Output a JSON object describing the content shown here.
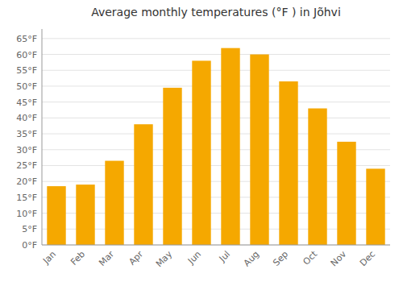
{
  "chart_data": {
    "type": "bar",
    "title": "Average monthly temperatures (°F ) in Jõhvi",
    "categories": [
      "Jan",
      "Feb",
      "Mar",
      "Apr",
      "May",
      "Jun",
      "Jul",
      "Aug",
      "Sep",
      "Oct",
      "Nov",
      "Dec"
    ],
    "values": [
      18.5,
      19.0,
      26.5,
      38.0,
      49.5,
      58.0,
      62.0,
      60.0,
      51.5,
      43.0,
      32.5,
      24.0
    ],
    "color": "#F5A800",
    "ylim": [
      0,
      68
    ],
    "yticks": [
      {
        "value": 0,
        "label": "0°F"
      },
      {
        "value": 5,
        "label": "5°F"
      },
      {
        "value": 10,
        "label": "10°F"
      },
      {
        "value": 15,
        "label": "15°F"
      },
      {
        "value": 20,
        "label": "20°F"
      },
      {
        "value": 25,
        "label": "25°F"
      },
      {
        "value": 30,
        "label": "30°F"
      },
      {
        "value": 35,
        "label": "35°F"
      },
      {
        "value": 40,
        "label": "40°F"
      },
      {
        "value": 45,
        "label": "45°F"
      },
      {
        "value": 50,
        "label": "50°F"
      },
      {
        "value": 55,
        "label": "55°F"
      },
      {
        "value": 60,
        "label": "60°F"
      },
      {
        "value": 65,
        "label": "65°F"
      }
    ],
    "grid": true
  }
}
